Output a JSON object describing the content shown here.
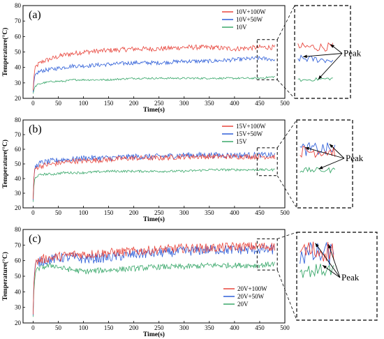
{
  "peak_label": "Peak",
  "colors": {
    "red": "#e8453c",
    "blue": "#2f5fd8",
    "green": "#3aa86b"
  },
  "chart_data": [
    {
      "type": "line",
      "panel_label": "(a)",
      "xlabel": "Time(s)",
      "ylabel": "Temperature(°C)",
      "xlim": [
        -20,
        500
      ],
      "ylim": [
        20,
        80
      ],
      "xticks": [
        0,
        50,
        100,
        150,
        200,
        250,
        300,
        350,
        400,
        450,
        500
      ],
      "yticks": [
        20,
        30,
        40,
        50,
        60,
        70,
        80
      ],
      "x": [
        0,
        2,
        5,
        10,
        20,
        40,
        60,
        80,
        100,
        150,
        200,
        250,
        300,
        350,
        400,
        450,
        480
      ],
      "series": [
        {
          "name": "10V+100W",
          "color": "#e8453c",
          "noise": 1.6,
          "values": [
            25,
            36,
            40,
            42,
            44,
            46,
            48,
            49,
            50,
            51,
            52,
            52,
            53,
            53,
            52,
            53,
            53
          ]
        },
        {
          "name": "10V+50W",
          "color": "#2f5fd8",
          "noise": 1.3,
          "values": [
            24,
            32,
            35,
            37,
            38,
            39,
            40,
            41,
            41,
            42,
            43,
            43,
            44,
            44,
            45,
            46,
            45
          ]
        },
        {
          "name": "10V",
          "color": "#3aa86b",
          "noise": 0.6,
          "values": [
            23,
            26,
            28,
            29,
            30,
            31,
            31,
            32,
            32,
            32,
            33,
            33,
            33,
            33,
            33,
            33,
            34
          ]
        }
      ]
    },
    {
      "type": "line",
      "panel_label": "(b)",
      "xlabel": "Time(s)",
      "ylabel": "Temperature(°C)",
      "xlim": [
        -20,
        500
      ],
      "ylim": [
        20,
        80
      ],
      "xticks": [
        0,
        50,
        100,
        150,
        200,
        250,
        300,
        350,
        400,
        450,
        500
      ],
      "yticks": [
        20,
        30,
        40,
        50,
        60,
        70,
        80
      ],
      "x": [
        0,
        2,
        5,
        10,
        20,
        40,
        60,
        80,
        100,
        150,
        200,
        250,
        300,
        350,
        400,
        450,
        480
      ],
      "series": [
        {
          "name": "15V+100W",
          "color": "#e8453c",
          "noise": 1.8,
          "values": [
            26,
            44,
            47,
            48,
            49,
            50,
            51,
            52,
            52,
            53,
            54,
            54,
            55,
            55,
            55,
            55,
            55
          ]
        },
        {
          "name": "15V+50W",
          "color": "#2f5fd8",
          "noise": 2.0,
          "values": [
            25,
            45,
            48,
            50,
            51,
            52,
            53,
            53,
            54,
            54,
            55,
            55,
            56,
            56,
            56,
            56,
            56
          ]
        },
        {
          "name": "15V",
          "color": "#3aa86b",
          "noise": 0.8,
          "values": [
            24,
            38,
            41,
            42,
            43,
            43,
            44,
            44,
            44,
            45,
            45,
            45,
            45,
            46,
            46,
            46,
            46
          ]
        }
      ]
    },
    {
      "type": "line",
      "panel_label": "(c)",
      "xlabel": "Time(s)",
      "ylabel": "Temperature(°C)",
      "xlim": [
        -20,
        500
      ],
      "ylim": [
        20,
        80
      ],
      "xticks": [
        0,
        50,
        100,
        150,
        200,
        250,
        300,
        350,
        400,
        450,
        500
      ],
      "yticks": [
        20,
        30,
        40,
        50,
        60,
        70,
        80
      ],
      "x": [
        0,
        2,
        5,
        10,
        20,
        40,
        60,
        80,
        100,
        150,
        200,
        250,
        300,
        350,
        400,
        450,
        480
      ],
      "series": [
        {
          "name": "20V+100W",
          "color": "#e8453c",
          "noise": 3.0,
          "values": [
            26,
            52,
            58,
            60,
            61,
            62,
            63,
            64,
            64,
            65,
            66,
            67,
            68,
            68,
            69,
            69,
            69
          ]
        },
        {
          "name": "20V+50W",
          "color": "#2f5fd8",
          "noise": 3.2,
          "values": [
            25,
            52,
            57,
            59,
            60,
            61,
            62,
            62,
            61,
            62,
            64,
            65,
            66,
            67,
            67,
            67,
            67
          ]
        },
        {
          "name": "20V",
          "color": "#3aa86b",
          "noise": 1.8,
          "values": [
            24,
            46,
            52,
            55,
            56,
            57,
            55,
            54,
            53,
            54,
            55,
            56,
            56,
            57,
            57,
            57,
            58
          ]
        }
      ]
    }
  ]
}
